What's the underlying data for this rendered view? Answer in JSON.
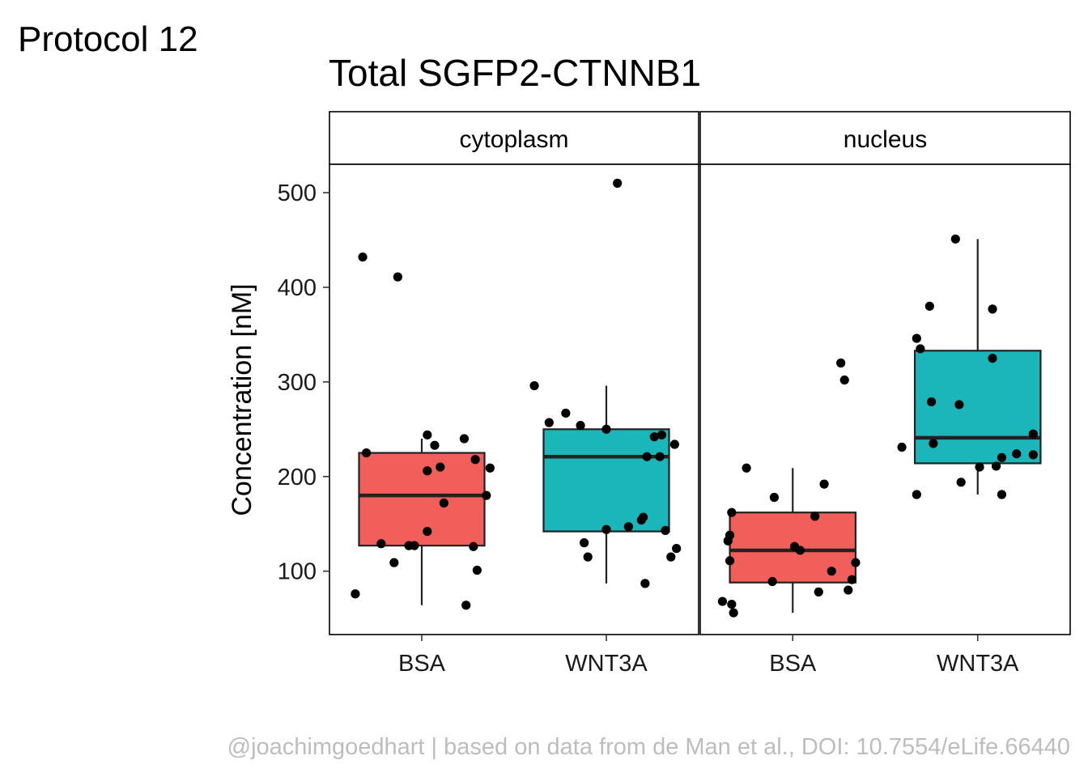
{
  "header": {
    "protocol": "Protocol 12"
  },
  "caption": "@joachimgoedhart | based on data from de Man et al., DOI: 10.7554/eLife.66440",
  "colors": {
    "BSA": "#F25E5A",
    "WNT3A": "#1BB6BA",
    "points": "#000000",
    "caption": "#bdbdbd"
  },
  "chart_data": {
    "type": "box",
    "title": "Total SGFP2-CTNNB1",
    "ylabel": "Concentration [nM]",
    "xlabel": "",
    "ylim": [
      33,
      530
    ],
    "yticks": [
      100,
      200,
      300,
      400,
      500
    ],
    "categories": [
      "BSA",
      "WNT3A"
    ],
    "grid": false,
    "legend": "none",
    "facets": [
      {
        "name": "cytoplasm",
        "groups": [
          {
            "category": "BSA",
            "box": {
              "whisker_low": 64,
              "q1": 127,
              "median": 180,
              "q3": 225,
              "whisker_high": 240
            },
            "points": [
              {
                "x": 0.68,
                "y": 432
              },
              {
                "x": 0.87,
                "y": 411
              },
              {
                "x": 0.7,
                "y": 225
              },
              {
                "x": 1.03,
                "y": 244
              },
              {
                "x": 1.07,
                "y": 233
              },
              {
                "x": 1.1,
                "y": 210
              },
              {
                "x": 1.03,
                "y": 206
              },
              {
                "x": 1.23,
                "y": 240
              },
              {
                "x": 1.29,
                "y": 218
              },
              {
                "x": 1.37,
                "y": 209
              },
              {
                "x": 1.35,
                "y": 180
              },
              {
                "x": 1.12,
                "y": 172
              },
              {
                "x": 1.03,
                "y": 142
              },
              {
                "x": 0.78,
                "y": 129
              },
              {
                "x": 0.93,
                "y": 127
              },
              {
                "x": 0.96,
                "y": 127
              },
              {
                "x": 1.28,
                "y": 126
              },
              {
                "x": 0.85,
                "y": 109
              },
              {
                "x": 1.3,
                "y": 101
              },
              {
                "x": 0.64,
                "y": 76
              },
              {
                "x": 1.24,
                "y": 64
              }
            ]
          },
          {
            "category": "WNT3A",
            "box": {
              "whisker_low": 87,
              "q1": 142,
              "median": 221,
              "q3": 250,
              "whisker_high": 296
            },
            "points": [
              {
                "x": 2.06,
                "y": 510
              },
              {
                "x": 1.61,
                "y": 296
              },
              {
                "x": 1.78,
                "y": 267
              },
              {
                "x": 1.69,
                "y": 257
              },
              {
                "x": 1.86,
                "y": 254
              },
              {
                "x": 2.0,
                "y": 250
              },
              {
                "x": 2.3,
                "y": 244
              },
              {
                "x": 2.26,
                "y": 242
              },
              {
                "x": 2.37,
                "y": 234
              },
              {
                "x": 2.22,
                "y": 221
              },
              {
                "x": 2.29,
                "y": 221
              },
              {
                "x": 2.2,
                "y": 157
              },
              {
                "x": 2.19,
                "y": 154
              },
              {
                "x": 2.0,
                "y": 144
              },
              {
                "x": 2.12,
                "y": 147
              },
              {
                "x": 2.32,
                "y": 143
              },
              {
                "x": 2.38,
                "y": 124
              },
              {
                "x": 2.35,
                "y": 115
              },
              {
                "x": 1.9,
                "y": 115
              },
              {
                "x": 1.88,
                "y": 130
              },
              {
                "x": 2.21,
                "y": 87
              }
            ]
          }
        ]
      },
      {
        "name": "nucleus",
        "groups": [
          {
            "category": "BSA",
            "box": {
              "whisker_low": 56,
              "q1": 88,
              "median": 122,
              "q3": 162,
              "whisker_high": 209
            },
            "points": [
              {
                "x": 1.26,
                "y": 320
              },
              {
                "x": 1.28,
                "y": 302
              },
              {
                "x": 0.75,
                "y": 209
              },
              {
                "x": 1.17,
                "y": 192
              },
              {
                "x": 0.9,
                "y": 178
              },
              {
                "x": 0.67,
                "y": 162
              },
              {
                "x": 1.12,
                "y": 158
              },
              {
                "x": 0.66,
                "y": 138
              },
              {
                "x": 0.65,
                "y": 132
              },
              {
                "x": 1.01,
                "y": 126
              },
              {
                "x": 1.04,
                "y": 122
              },
              {
                "x": 0.66,
                "y": 111
              },
              {
                "x": 1.34,
                "y": 109
              },
              {
                "x": 1.21,
                "y": 100
              },
              {
                "x": 1.32,
                "y": 91
              },
              {
                "x": 0.89,
                "y": 89
              },
              {
                "x": 1.3,
                "y": 80
              },
              {
                "x": 1.14,
                "y": 78
              },
              {
                "x": 0.62,
                "y": 68
              },
              {
                "x": 0.67,
                "y": 65
              },
              {
                "x": 0.68,
                "y": 56
              }
            ]
          },
          {
            "category": "WNT3A",
            "box": {
              "whisker_low": 181,
              "q1": 214,
              "median": 241,
              "q3": 333,
              "whisker_high": 451
            },
            "points": [
              {
                "x": 1.88,
                "y": 451
              },
              {
                "x": 1.74,
                "y": 380
              },
              {
                "x": 2.08,
                "y": 377
              },
              {
                "x": 1.67,
                "y": 346
              },
              {
                "x": 1.69,
                "y": 335
              },
              {
                "x": 2.08,
                "y": 325
              },
              {
                "x": 1.75,
                "y": 279
              },
              {
                "x": 1.9,
                "y": 276
              },
              {
                "x": 1.59,
                "y": 231
              },
              {
                "x": 1.76,
                "y": 235
              },
              {
                "x": 2.3,
                "y": 245
              },
              {
                "x": 2.21,
                "y": 224
              },
              {
                "x": 2.3,
                "y": 223
              },
              {
                "x": 2.13,
                "y": 220
              },
              {
                "x": 2.01,
                "y": 210
              },
              {
                "x": 2.1,
                "y": 211
              },
              {
                "x": 1.91,
                "y": 194
              },
              {
                "x": 1.67,
                "y": 181
              },
              {
                "x": 2.13,
                "y": 181
              }
            ]
          }
        ]
      }
    ]
  }
}
